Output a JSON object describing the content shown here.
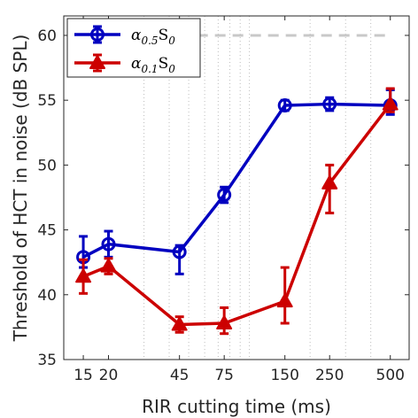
{
  "chart_data": {
    "type": "line",
    "xlabel": "RIR cutting time (ms)",
    "ylabel": "Threshold of HCT in noise (dB SPL)",
    "xscale": "log",
    "xlim": [
      12,
      620
    ],
    "ylim": [
      35,
      61.5
    ],
    "grid": "vertical minor dotted",
    "x_ticks": [
      15,
      20,
      45,
      75,
      150,
      250,
      500
    ],
    "x_tick_labels": [
      "15",
      "20",
      "45",
      "75",
      "150",
      "250",
      "500"
    ],
    "y_ticks": [
      35,
      40,
      45,
      50,
      55,
      60
    ],
    "y_tick_labels": [
      "35",
      "40",
      "45",
      "50",
      "55",
      "60"
    ],
    "x_minor_grid": [
      30,
      40,
      50,
      60,
      70,
      80,
      90,
      100,
      200,
      300,
      400
    ],
    "legend_position": "top-left",
    "reference_line": {
      "y": 60,
      "x_from": 45,
      "x_to": 500,
      "color": "#c8c8c8",
      "style": "dashed"
    },
    "series": [
      {
        "name_base": "α",
        "name_sub": "0.5",
        "name_tail": "S",
        "name_tail_sub": "0",
        "color": "#0000c0",
        "marker": "circle",
        "x": [
          15,
          20,
          45,
          75,
          150,
          250,
          500
        ],
        "y": [
          42.9,
          43.9,
          43.3,
          47.7,
          54.6,
          54.7,
          54.6
        ],
        "err_low": [
          0.8,
          1.0,
          1.7,
          0.6,
          0.4,
          0.5,
          0.7
        ],
        "err_high": [
          1.6,
          1.0,
          0.5,
          0.6,
          0.4,
          0.5,
          1.2
        ]
      },
      {
        "name_base": "α",
        "name_sub": "0.1",
        "name_tail": "S",
        "name_tail_sub": "0",
        "color": "#cc0000",
        "marker": "triangle",
        "x": [
          15,
          20,
          45,
          75,
          150,
          250,
          500
        ],
        "y": [
          41.4,
          42.2,
          37.7,
          37.8,
          39.5,
          48.6,
          54.7
        ],
        "err_low": [
          1.3,
          0.6,
          0.6,
          0.8,
          1.7,
          2.3,
          0.6
        ],
        "err_high": [
          1.3,
          0.6,
          0.6,
          1.2,
          2.6,
          1.4,
          1.2
        ]
      }
    ]
  }
}
